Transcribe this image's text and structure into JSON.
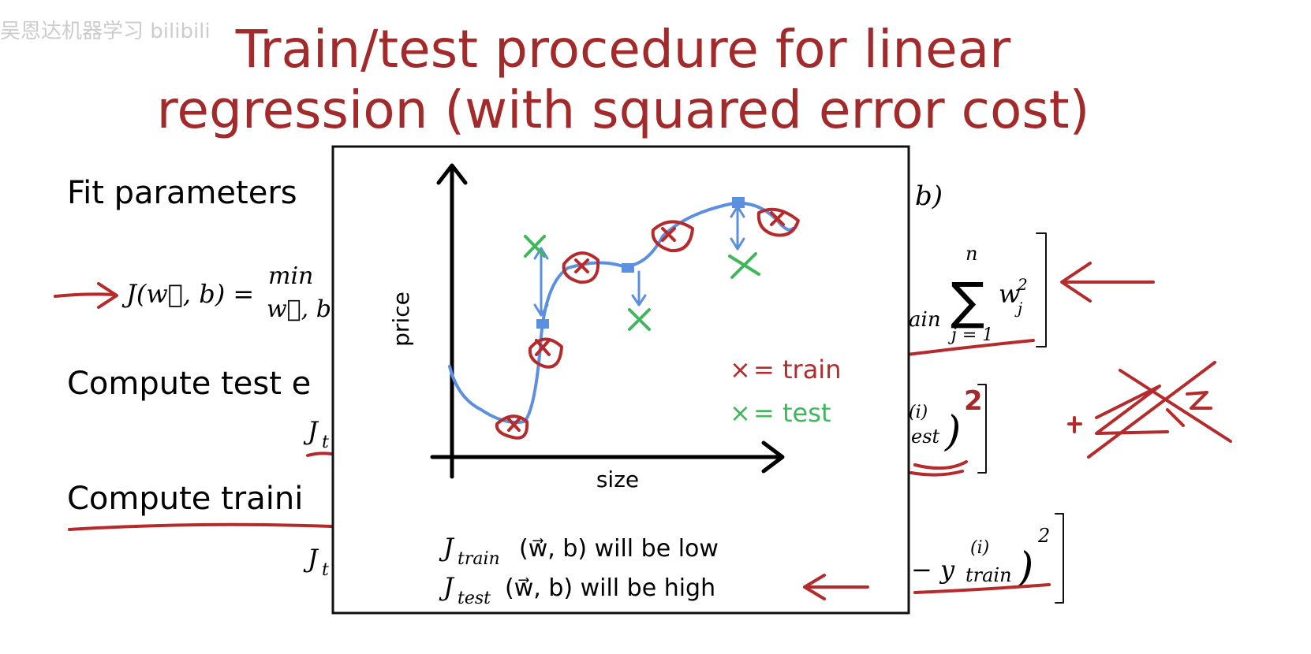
{
  "watermark": "吴恩达机器学习 bilibili",
  "title": [
    "Train/test procedure for linear",
    "regression (with squared error cost)"
  ],
  "left": {
    "fit": "Fit parameters",
    "cost": "J(w⃗, b) =",
    "min": "min",
    "minsub": "w⃗, b",
    "test": "Compute test e",
    "jtest": "J",
    "jtestsub": "t",
    "train": "Compute traini",
    "jtrain": "J",
    "jtrainsub": "t"
  },
  "right": {
    "fitend": "b)",
    "frac": "ain",
    "sum": "∑",
    "sumtop": "n",
    "sumbot": "j = 1",
    "w": "w",
    "wsub": "j",
    "wsup": "2",
    "testsup": "(i)",
    "testsub": "est",
    "testparen": ")",
    "testpow": "2",
    "trainy": "− y",
    "trainsup": "(i)",
    "trainsub": "train",
    "trainparen": ")",
    "trainpow": "2"
  },
  "inset": {
    "ylabel": "price",
    "xlabel": "size",
    "legend": [
      {
        "mark": "×",
        "label": "= train"
      },
      {
        "mark": "×",
        "label": "= test"
      }
    ],
    "notes": [
      {
        "j": "J",
        "sub": "train",
        "rest": "(w⃗, b) will be low"
      },
      {
        "j": "J",
        "sub": "test",
        "rest": "(w⃗, b) will be high"
      }
    ]
  }
}
